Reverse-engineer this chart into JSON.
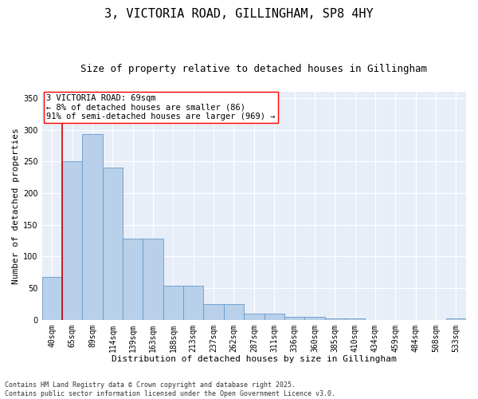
{
  "title1": "3, VICTORIA ROAD, GILLINGHAM, SP8 4HY",
  "title2": "Size of property relative to detached houses in Gillingham",
  "xlabel": "Distribution of detached houses by size in Gillingham",
  "ylabel": "Number of detached properties",
  "categories": [
    "40sqm",
    "65sqm",
    "89sqm",
    "114sqm",
    "139sqm",
    "163sqm",
    "188sqm",
    "213sqm",
    "237sqm",
    "262sqm",
    "287sqm",
    "311sqm",
    "336sqm",
    "360sqm",
    "385sqm",
    "410sqm",
    "434sqm",
    "459sqm",
    "484sqm",
    "508sqm",
    "533sqm"
  ],
  "values": [
    68,
    251,
    293,
    240,
    128,
    128,
    54,
    54,
    25,
    25,
    10,
    10,
    5,
    5,
    2,
    2,
    0,
    0,
    0,
    0,
    2
  ],
  "bar_color": "#b8d0ea",
  "bar_edge_color": "#6699cc",
  "vline_color": "#cc0000",
  "vline_xindex": 1,
  "annotation_text": "3 VICTORIA ROAD: 69sqm\n← 8% of detached houses are smaller (86)\n91% of semi-detached houses are larger (969) →",
  "annotation_box_facecolor": "white",
  "annotation_box_edgecolor": "red",
  "ylim": [
    0,
    360
  ],
  "yticks": [
    0,
    50,
    100,
    150,
    200,
    250,
    300,
    350
  ],
  "plot_bg_color": "#e8eef8",
  "grid_color": "#ffffff",
  "footer": "Contains HM Land Registry data © Crown copyright and database right 2025.\nContains public sector information licensed under the Open Government Licence v3.0.",
  "title1_fontsize": 11,
  "title2_fontsize": 9,
  "xlabel_fontsize": 8,
  "ylabel_fontsize": 8,
  "tick_fontsize": 7,
  "annotation_fontsize": 7.5,
  "footer_fontsize": 6
}
